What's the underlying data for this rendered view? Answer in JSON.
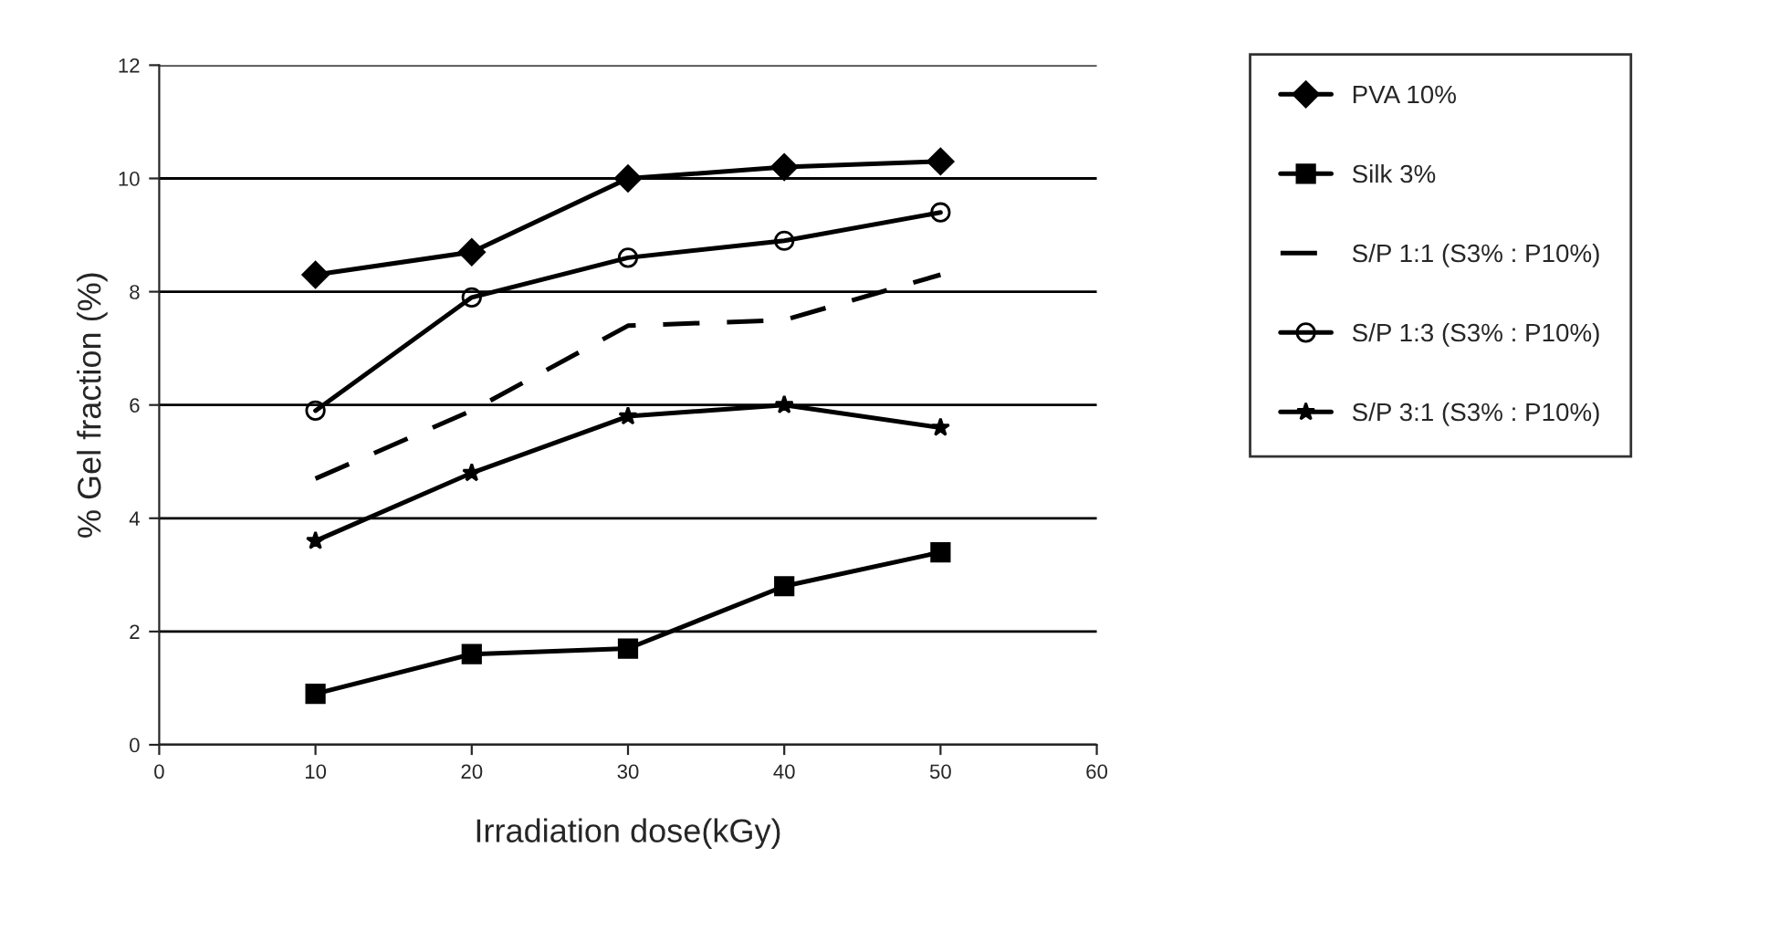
{
  "chart_data": {
    "type": "line",
    "xlabel": "Irradiation dose(kGy)",
    "ylabel": "% Gel fraction (%)",
    "x": [
      10,
      20,
      30,
      40,
      50
    ],
    "xlim": [
      0,
      60
    ],
    "xticks": [
      0,
      10,
      20,
      30,
      40,
      50,
      60
    ],
    "ylim": [
      0,
      12
    ],
    "yticks": [
      0,
      2,
      4,
      6,
      8,
      10,
      12
    ],
    "grid": "y",
    "legend": "right",
    "series": [
      {
        "name": "PVA 10%",
        "color": "#000000",
        "marker": "diamond",
        "line_style": "solid",
        "values": [
          8.3,
          8.7,
          10.0,
          10.2,
          10.3
        ]
      },
      {
        "name": "Silk 3%",
        "color": "#000000",
        "marker": "square",
        "line_style": "solid",
        "values": [
          0.9,
          1.6,
          1.7,
          2.8,
          3.4
        ]
      },
      {
        "name": "S/P 1:1 (S3% : P10%)",
        "color": "#000000",
        "marker": "none",
        "line_style": "dashed",
        "values": [
          4.7,
          5.9,
          7.4,
          7.5,
          8.3
        ]
      },
      {
        "name": "S/P 1:3 (S3% : P10%)",
        "color": "#000000",
        "marker": "circle",
        "line_style": "solid",
        "values": [
          5.9,
          7.9,
          8.6,
          8.9,
          9.4
        ]
      },
      {
        "name": "S/P 3:1 (S3% : P10%)",
        "color": "#000000",
        "marker": "star",
        "line_style": "solid",
        "values": [
          3.6,
          4.8,
          5.8,
          6.0,
          5.6
        ]
      }
    ]
  }
}
